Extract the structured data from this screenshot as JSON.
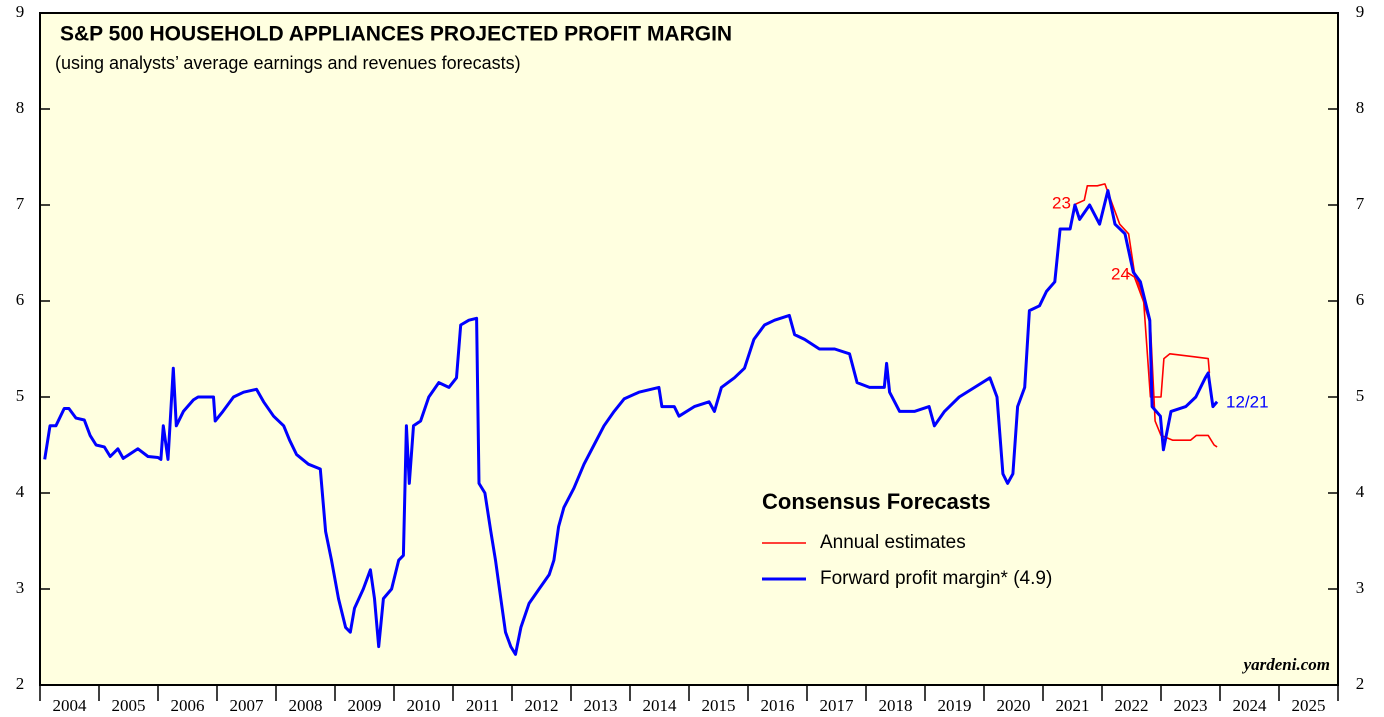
{
  "chart_data": {
    "type": "line",
    "title": "S&P 500 HOUSEHOLD APPLIANCES PROJECTED PROFIT MARGIN",
    "subtitle": "(using analysts’ average earnings and revenues forecasts)",
    "legend_title": "Consensus Forecasts",
    "annotations": [
      "23",
      "24",
      "12/21",
      "yardeni.com"
    ],
    "xlim": [
      2004,
      2026
    ],
    "xticks": [
      2004,
      2005,
      2006,
      2007,
      2008,
      2009,
      2010,
      2011,
      2012,
      2013,
      2014,
      2015,
      2016,
      2017,
      2018,
      2019,
      2020,
      2021,
      2022,
      2023,
      2024,
      2025,
      2026
    ],
    "x_labels": [
      "2004",
      "2005",
      "2006",
      "2007",
      "2008",
      "2009",
      "2010",
      "2011",
      "2012",
      "2013",
      "2014",
      "2015",
      "2016",
      "2017",
      "2018",
      "2019",
      "2020",
      "2021",
      "2022",
      "2023",
      "2024",
      "2025"
    ],
    "ylim": [
      2,
      9
    ],
    "yticks": [
      2,
      3,
      4,
      5,
      6,
      7,
      8,
      9
    ],
    "y2lim": [
      2,
      9
    ],
    "y2ticks": [
      2,
      3,
      4,
      5,
      6,
      7,
      8,
      9
    ],
    "series": [
      {
        "name": "Annual estimates",
        "color": "#ff0000",
        "x": [
          2021.52,
          2021.7,
          2021.75,
          2021.92,
          2022.05,
          2022.12,
          2022.3,
          2022.45,
          2022.55,
          2022.7,
          2022.82,
          2023.0,
          2023.05,
          2023.15,
          2023.55,
          2023.8,
          2023.82,
          2023.85,
          2022.42,
          2022.55,
          2022.7,
          2022.82,
          2022.9,
          2023.0,
          2023.2,
          2023.5,
          2023.6,
          2023.8,
          2023.9,
          2023.95
        ],
        "values": [
          7.0,
          7.05,
          7.2,
          7.2,
          7.22,
          7.1,
          6.8,
          6.7,
          6.3,
          6.05,
          5.0,
          5.0,
          5.4,
          5.45,
          5.42,
          5.4,
          5.25,
          null,
          6.3,
          6.25,
          6.0,
          5.75,
          4.75,
          4.6,
          4.55,
          4.55,
          4.6,
          4.6,
          4.5,
          4.48
        ]
      },
      {
        "name": "Forward profit margin* (4.9)",
        "color": "#0000ff",
        "x": [
          2004.08,
          2004.17,
          2004.27,
          2004.41,
          2004.49,
          2004.61,
          2004.75,
          2004.85,
          2004.95,
          2005.09,
          2005.19,
          2005.32,
          2005.41,
          2005.66,
          2005.83,
          2006.0,
          2006.05,
          2006.09,
          2006.17,
          2006.26,
          2006.31,
          2006.43,
          2006.6,
          2006.68,
          2006.94,
          2006.97,
          2007.1,
          2007.28,
          2007.45,
          2007.67,
          2007.79,
          2007.96,
          2008.13,
          2008.23,
          2008.35,
          2008.55,
          2008.75,
          2008.84,
          2008.94,
          2009.06,
          2009.18,
          2009.26,
          2009.33,
          2009.48,
          2009.6,
          2009.67,
          2009.74,
          2009.82,
          2009.96,
          2010.08,
          2010.16,
          2010.21,
          2010.26,
          2010.33,
          2010.45,
          2010.59,
          2010.76,
          2010.93,
          2011.06,
          2011.13,
          2011.27,
          2011.4,
          2011.44,
          2011.54,
          2011.64,
          2011.72,
          2011.81,
          2011.89,
          2011.98,
          2012.06,
          2012.15,
          2012.29,
          2012.46,
          2012.63,
          2012.71,
          2012.79,
          2012.88,
          2013.05,
          2013.22,
          2013.39,
          2013.56,
          2013.73,
          2013.9,
          2014.15,
          2014.49,
          2014.54,
          2014.75,
          2014.83,
          2015.09,
          2015.34,
          2015.43,
          2015.55,
          2015.77,
          2015.94,
          2016.1,
          2016.28,
          2016.45,
          2016.7,
          2016.79,
          2016.96,
          2017.21,
          2017.47,
          2017.72,
          2017.85,
          2018.06,
          2018.31,
          2018.35,
          2018.4,
          2018.57,
          2018.82,
          2019.07,
          2019.16,
          2019.33,
          2019.58,
          2019.84,
          2020.1,
          2020.22,
          2020.32,
          2020.4,
          2020.49,
          2020.57,
          2020.69,
          2020.77,
          2020.94,
          2021.06,
          2021.2,
          2021.29,
          2021.46,
          2021.54,
          2021.62,
          2021.79,
          2021.96,
          2022.1,
          2022.22,
          2022.39,
          2022.53,
          2022.65,
          2022.73,
          2022.81,
          2022.85,
          2022.99,
          2023.04,
          2023.17,
          2023.42,
          2023.59,
          2023.75,
          2023.8,
          2023.88,
          2023.95
        ],
        "values": [
          4.35,
          4.7,
          4.7,
          4.88,
          4.88,
          4.78,
          4.76,
          4.6,
          4.5,
          4.48,
          4.38,
          4.46,
          4.36,
          4.46,
          4.38,
          4.37,
          4.35,
          4.7,
          4.35,
          5.3,
          4.7,
          4.85,
          4.97,
          5.0,
          5.0,
          4.75,
          4.85,
          5.0,
          5.05,
          5.08,
          4.95,
          4.8,
          4.7,
          4.55,
          4.4,
          4.3,
          4.25,
          3.6,
          3.3,
          2.9,
          2.6,
          2.55,
          2.8,
          3.0,
          3.2,
          2.9,
          2.4,
          2.9,
          3.0,
          3.3,
          3.35,
          4.7,
          4.1,
          4.7,
          4.75,
          5.0,
          5.15,
          5.1,
          5.2,
          5.75,
          5.8,
          5.82,
          4.1,
          4.0,
          3.6,
          3.3,
          2.9,
          2.55,
          2.4,
          2.32,
          2.6,
          2.85,
          3.0,
          3.15,
          3.3,
          3.65,
          3.85,
          4.05,
          4.3,
          4.5,
          4.7,
          4.85,
          4.98,
          5.05,
          5.1,
          4.9,
          4.9,
          4.8,
          4.9,
          4.95,
          4.85,
          5.1,
          5.2,
          5.3,
          5.6,
          5.75,
          5.8,
          5.85,
          5.65,
          5.6,
          5.5,
          5.5,
          5.45,
          5.15,
          5.1,
          5.1,
          5.35,
          5.05,
          4.85,
          4.85,
          4.9,
          4.7,
          4.85,
          5.0,
          5.1,
          5.2,
          5.0,
          4.2,
          4.1,
          4.2,
          4.9,
          5.1,
          5.9,
          5.95,
          6.1,
          6.2,
          6.75,
          6.75,
          7.0,
          6.85,
          7.0,
          6.8,
          7.15,
          6.8,
          6.7,
          6.3,
          6.2,
          6.0,
          5.8,
          4.9,
          4.8,
          4.45,
          4.85,
          4.9,
          5.0,
          5.2,
          5.25,
          4.9,
          4.95
        ]
      }
    ]
  }
}
